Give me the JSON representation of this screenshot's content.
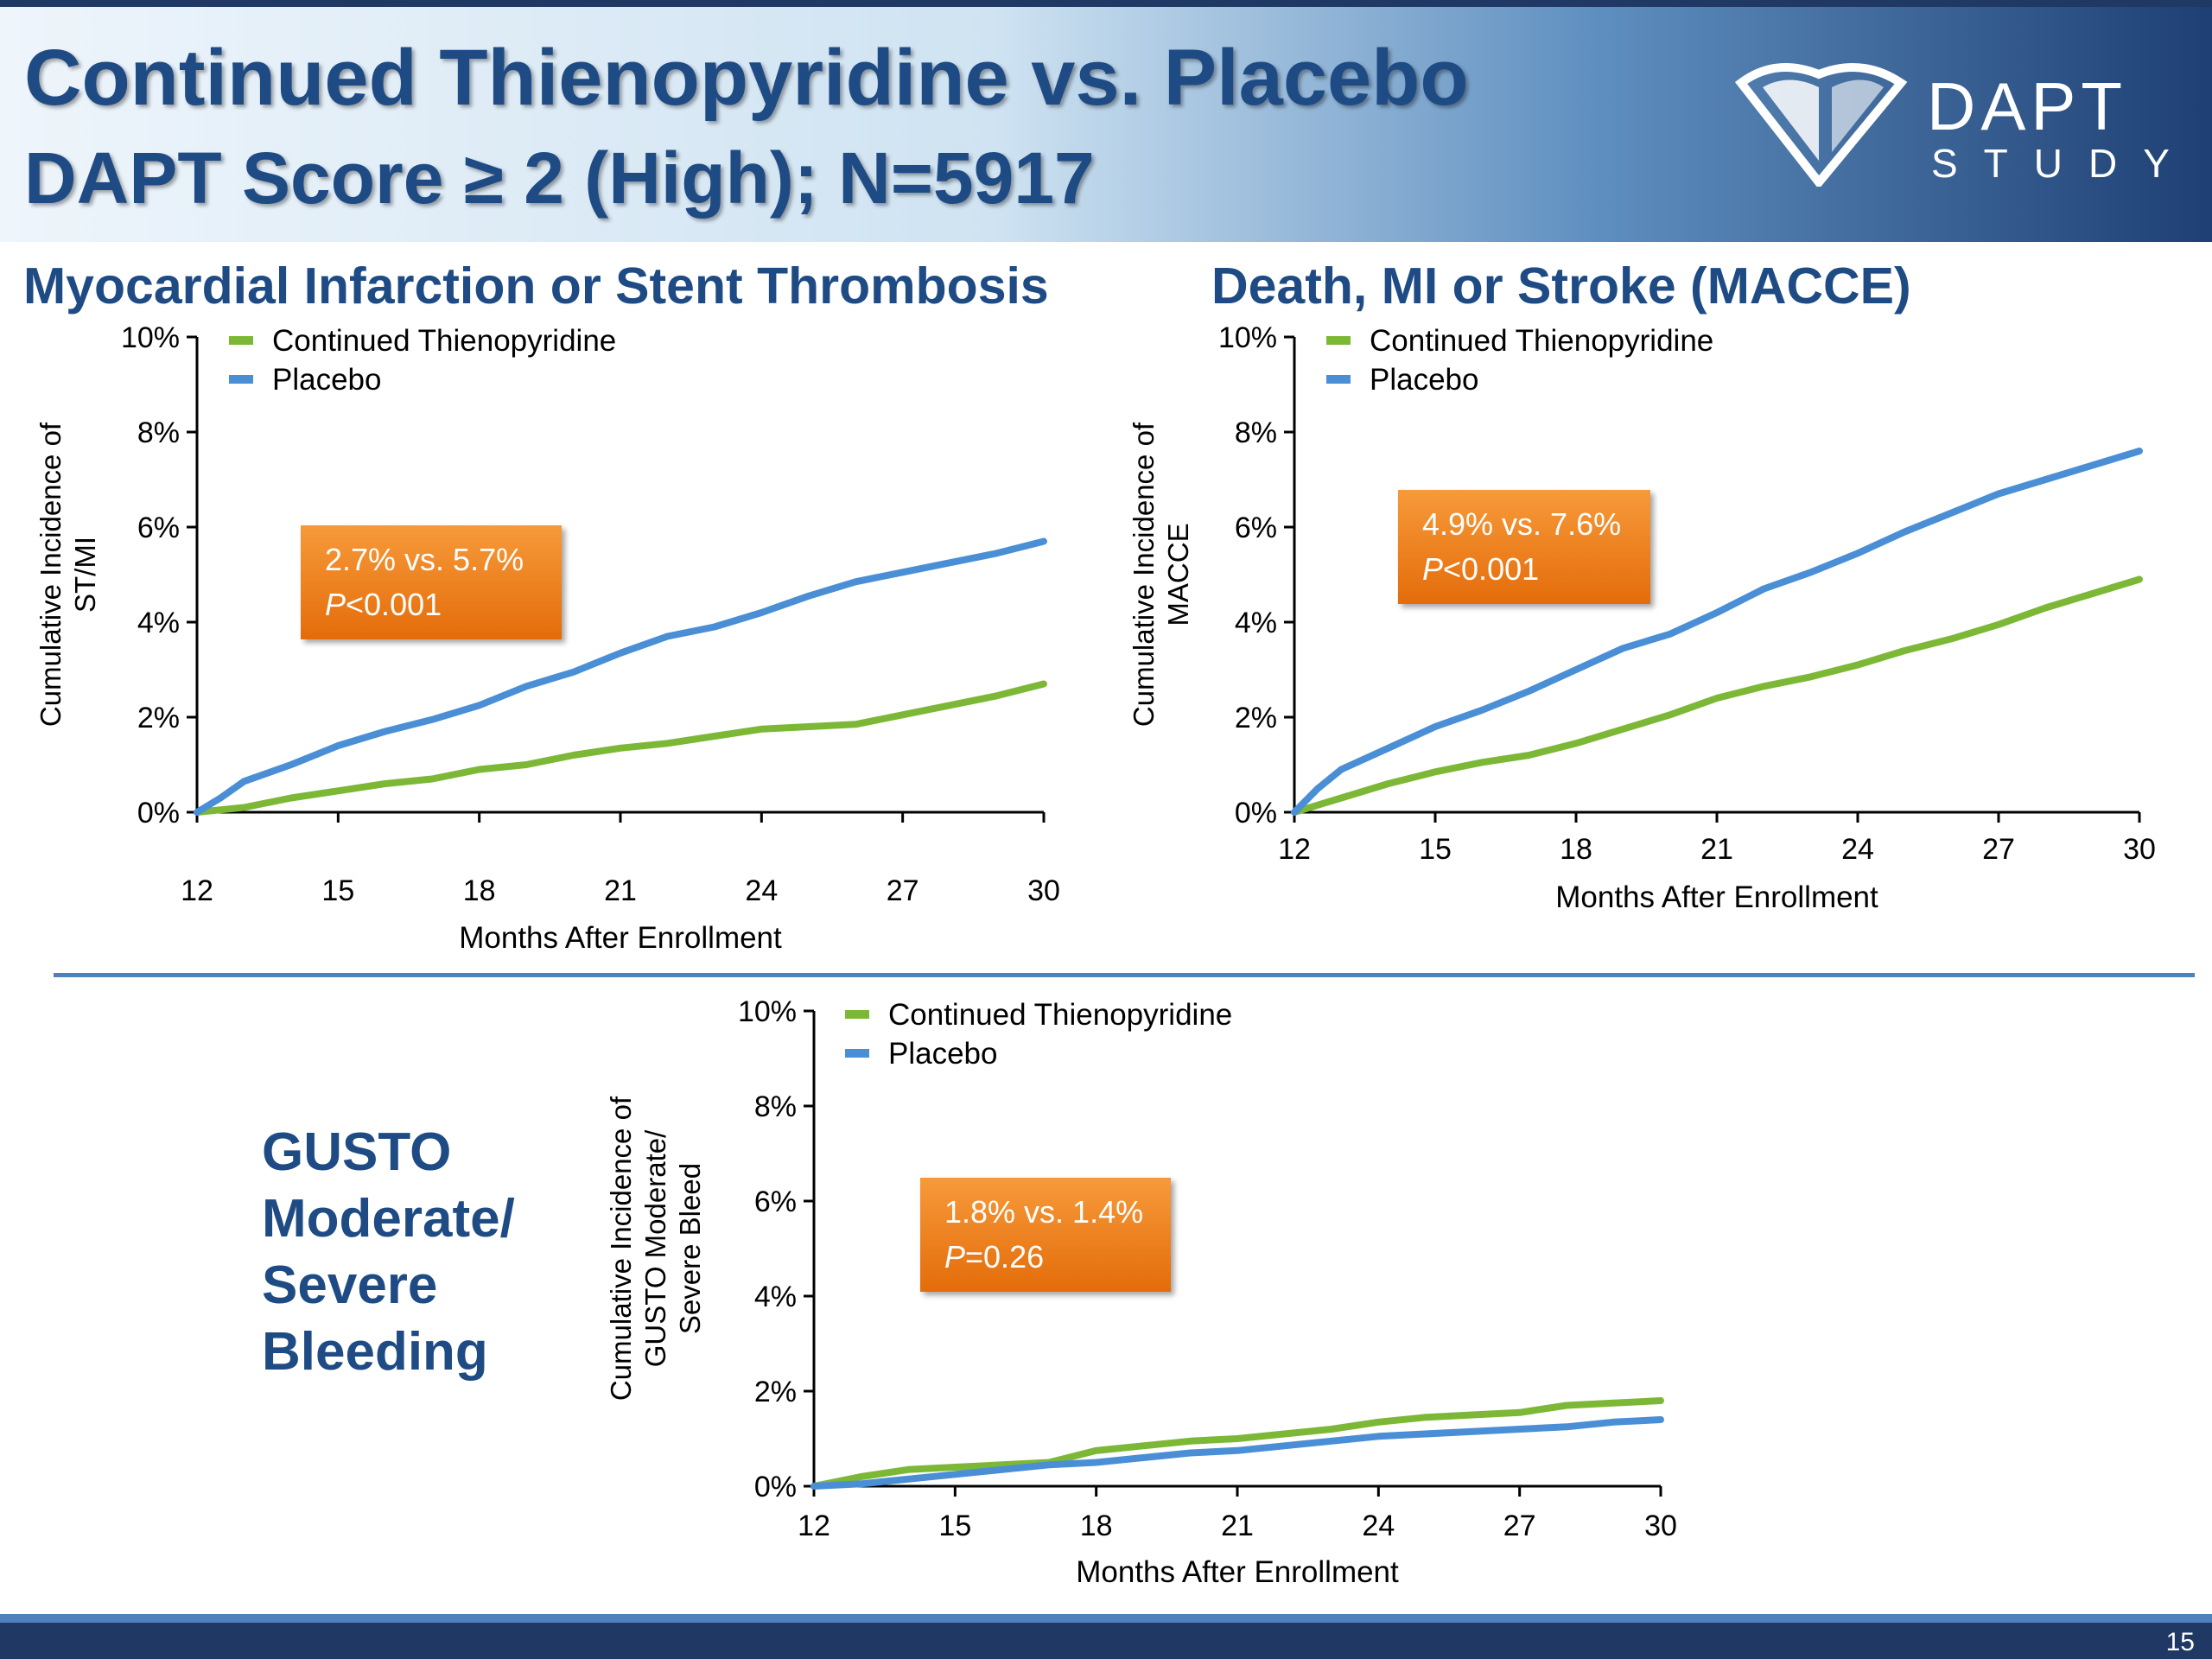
{
  "header": {
    "title_line1": "Continued Thienopyridine vs. Placebo",
    "title_line2": "DAPT Score ≥ 2 (High); N=5917",
    "logo_text": "DAPT",
    "logo_sub": "STUDY"
  },
  "colors": {
    "thienopyridine": "#7cb836",
    "placebo": "#4a8fd6",
    "accent_box": "#e46c0a",
    "title": "#1f4b85"
  },
  "panels": {
    "p1_title": "Myocardial Infarction or Stent Thrombosis",
    "p2_title": "Death, MI or Stroke (MACCE)",
    "p3_title": "GUSTO Moderate/ Severe Bleeding",
    "p3_title_lines": [
      "GUSTO",
      "Moderate/",
      "Severe",
      "Bleeding"
    ]
  },
  "stat_boxes": [
    {
      "line1": "2.7% vs. 5.7%",
      "p_label": "P",
      "p_value": "<0.001"
    },
    {
      "line1": "4.9% vs. 7.6%",
      "p_label": "P",
      "p_value": "<0.001"
    },
    {
      "line1": "1.8% vs. 1.4%",
      "p_label": "P",
      "p_value": "=0.26"
    }
  ],
  "chart_data": [
    {
      "type": "line",
      "title": "Myocardial Infarction or Stent Thrombosis",
      "xlabel": "Months After Enrollment",
      "ylabel": [
        "Cumulative Incidence of",
        "ST/MI"
      ],
      "xlim": [
        12,
        30
      ],
      "ylim": [
        0,
        10
      ],
      "xticks": [
        "12",
        "15",
        "18",
        "21",
        "24",
        "27",
        "30"
      ],
      "yticks": [
        "0%",
        "2%",
        "4%",
        "6%",
        "8%",
        "10%"
      ],
      "legend": [
        "Continued Thienopyridine",
        "Placebo"
      ],
      "legend_position": "top-left",
      "series": [
        {
          "name": "Continued Thienopyridine",
          "points": [
            [
              12,
              0
            ],
            [
              13,
              0.1
            ],
            [
              14,
              0.3
            ],
            [
              15,
              0.45
            ],
            [
              16,
              0.6
            ],
            [
              17,
              0.7
            ],
            [
              18,
              0.9
            ],
            [
              19,
              1.0
            ],
            [
              20,
              1.2
            ],
            [
              21,
              1.35
            ],
            [
              22,
              1.45
            ],
            [
              23,
              1.6
            ],
            [
              24,
              1.75
            ],
            [
              25,
              1.8
            ],
            [
              26,
              1.85
            ],
            [
              27,
              2.05
            ],
            [
              28,
              2.25
            ],
            [
              29,
              2.45
            ],
            [
              30,
              2.7
            ]
          ]
        },
        {
          "name": "Placebo",
          "points": [
            [
              12,
              0
            ],
            [
              12.5,
              0.3
            ],
            [
              13,
              0.65
            ],
            [
              14,
              1.0
            ],
            [
              15,
              1.4
            ],
            [
              16,
              1.7
            ],
            [
              17,
              1.95
            ],
            [
              18,
              2.25
            ],
            [
              19,
              2.65
            ],
            [
              20,
              2.95
            ],
            [
              21,
              3.35
            ],
            [
              22,
              3.7
            ],
            [
              23,
              3.9
            ],
            [
              24,
              4.2
            ],
            [
              25,
              4.55
            ],
            [
              26,
              4.85
            ],
            [
              27,
              5.05
            ],
            [
              28,
              5.25
            ],
            [
              29,
              5.45
            ],
            [
              30,
              5.7
            ]
          ]
        }
      ]
    },
    {
      "type": "line",
      "title": "Death, MI or Stroke (MACCE)",
      "xlabel": "Months After Enrollment",
      "ylabel": [
        "Cumulative Incidence of",
        "MACCE"
      ],
      "xlim": [
        12,
        30
      ],
      "ylim": [
        0,
        10
      ],
      "xticks": [
        "12",
        "15",
        "18",
        "21",
        "24",
        "27",
        "30"
      ],
      "yticks": [
        "0%",
        "2%",
        "4%",
        "6%",
        "8%",
        "10%"
      ],
      "legend": [
        "Continued Thienopyridine",
        "Placebo"
      ],
      "legend_position": "top-left",
      "series": [
        {
          "name": "Continued Thienopyridine",
          "points": [
            [
              12,
              0
            ],
            [
              13,
              0.3
            ],
            [
              14,
              0.6
            ],
            [
              15,
              0.85
            ],
            [
              16,
              1.05
            ],
            [
              17,
              1.2
            ],
            [
              18,
              1.45
            ],
            [
              19,
              1.75
            ],
            [
              20,
              2.05
            ],
            [
              21,
              2.4
            ],
            [
              22,
              2.65
            ],
            [
              23,
              2.85
            ],
            [
              24,
              3.1
            ],
            [
              25,
              3.4
            ],
            [
              26,
              3.65
            ],
            [
              27,
              3.95
            ],
            [
              28,
              4.3
            ],
            [
              29,
              4.6
            ],
            [
              30,
              4.9
            ]
          ]
        },
        {
          "name": "Placebo",
          "points": [
            [
              12,
              0
            ],
            [
              12.5,
              0.5
            ],
            [
              13,
              0.9
            ],
            [
              14,
              1.35
            ],
            [
              15,
              1.8
            ],
            [
              16,
              2.15
            ],
            [
              17,
              2.55
            ],
            [
              18,
              3.0
            ],
            [
              19,
              3.45
            ],
            [
              20,
              3.75
            ],
            [
              21,
              4.2
            ],
            [
              22,
              4.7
            ],
            [
              23,
              5.05
            ],
            [
              24,
              5.45
            ],
            [
              25,
              5.9
            ],
            [
              26,
              6.3
            ],
            [
              27,
              6.7
            ],
            [
              28,
              7.0
            ],
            [
              29,
              7.3
            ],
            [
              30,
              7.6
            ]
          ]
        }
      ]
    },
    {
      "type": "line",
      "title": "GUSTO Moderate/ Severe Bleeding",
      "xlabel": "Months After Enrollment",
      "ylabel": [
        "Cumulative Incidence of",
        "GUSTO Moderate/",
        "Severe Bleed"
      ],
      "xlim": [
        12,
        30
      ],
      "ylim": [
        0,
        10
      ],
      "xticks": [
        "12",
        "15",
        "18",
        "21",
        "24",
        "27",
        "30"
      ],
      "yticks": [
        "0%",
        "2%",
        "4%",
        "6%",
        "8%",
        "10%"
      ],
      "legend": [
        "Continued Thienopyridine",
        "Placebo"
      ],
      "legend_position": "top-left",
      "series": [
        {
          "name": "Continued Thienopyridine",
          "points": [
            [
              12,
              0
            ],
            [
              13,
              0.2
            ],
            [
              14,
              0.35
            ],
            [
              15,
              0.4
            ],
            [
              16,
              0.45
            ],
            [
              17,
              0.5
            ],
            [
              18,
              0.75
            ],
            [
              19,
              0.85
            ],
            [
              20,
              0.95
            ],
            [
              21,
              1.0
            ],
            [
              22,
              1.1
            ],
            [
              23,
              1.2
            ],
            [
              24,
              1.35
            ],
            [
              25,
              1.45
            ],
            [
              26,
              1.5
            ],
            [
              27,
              1.55
            ],
            [
              28,
              1.7
            ],
            [
              29,
              1.75
            ],
            [
              30,
              1.8
            ]
          ]
        },
        {
          "name": "Placebo",
          "points": [
            [
              12,
              0
            ],
            [
              13,
              0.05
            ],
            [
              14,
              0.15
            ],
            [
              15,
              0.25
            ],
            [
              16,
              0.35
            ],
            [
              17,
              0.45
            ],
            [
              18,
              0.5
            ],
            [
              19,
              0.6
            ],
            [
              20,
              0.7
            ],
            [
              21,
              0.75
            ],
            [
              22,
              0.85
            ],
            [
              23,
              0.95
            ],
            [
              24,
              1.05
            ],
            [
              25,
              1.1
            ],
            [
              26,
              1.15
            ],
            [
              27,
              1.2
            ],
            [
              28,
              1.25
            ],
            [
              29,
              1.35
            ],
            [
              30,
              1.4
            ]
          ]
        }
      ]
    }
  ]
}
